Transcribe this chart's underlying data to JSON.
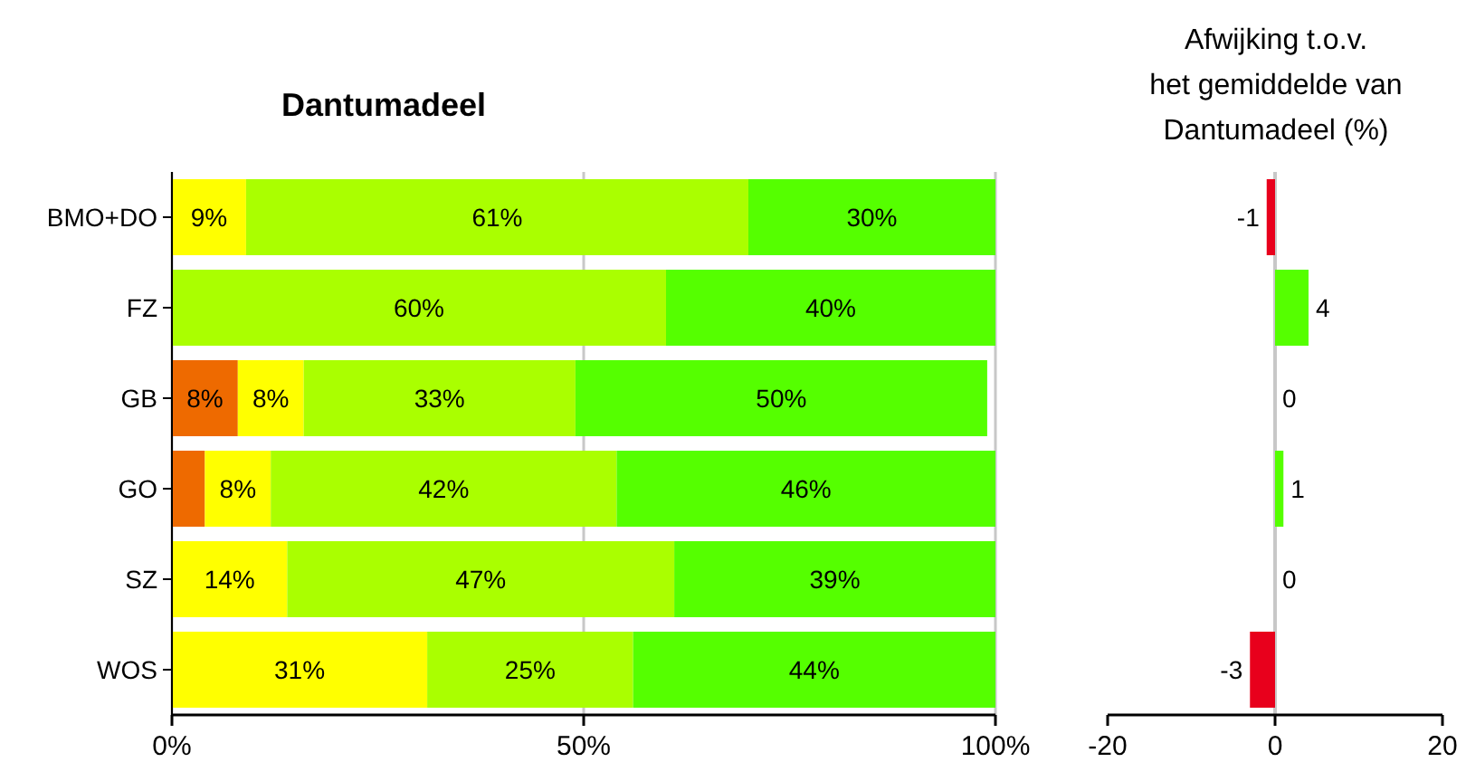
{
  "chart_data": [
    {
      "type": "bar",
      "title": "Dantumadeel",
      "orientation": "horizontal",
      "stacked": true,
      "categories": [
        "BMO+DO",
        "FZ",
        "GB",
        "GO",
        "SZ",
        "WOS"
      ],
      "xlim": [
        0,
        100
      ],
      "xticks": [
        {
          "value": 0,
          "label": "0%"
        },
        {
          "value": 50,
          "label": "50%"
        },
        {
          "value": 100,
          "label": "100%"
        }
      ],
      "grid": "x",
      "series": [
        {
          "color": "#ee6a00",
          "values": [
            0,
            0,
            8,
            4,
            0,
            0
          ],
          "value_labels": [
            null,
            null,
            "8%",
            null,
            null,
            null
          ]
        },
        {
          "color": "#ffff00",
          "values": [
            9,
            0,
            8,
            8,
            14,
            31
          ],
          "value_labels": [
            "9%",
            null,
            "8%",
            "8%",
            "14%",
            "31%"
          ]
        },
        {
          "color": "#aaff00",
          "values": [
            61,
            60,
            33,
            42,
            47,
            25
          ],
          "value_labels": [
            "61%",
            "60%",
            "33%",
            "42%",
            "47%",
            "25%"
          ]
        },
        {
          "color": "#55ff00",
          "values": [
            30,
            40,
            50,
            46,
            39,
            44
          ],
          "value_labels": [
            "30%",
            "40%",
            "50%",
            "46%",
            "39%",
            "44%"
          ]
        }
      ]
    },
    {
      "type": "bar",
      "title": "Afwijking t.o.v.\nhet gemiddelde van\nDantumadeel (%)",
      "orientation": "horizontal",
      "categories": [
        null,
        null,
        null,
        null,
        null,
        null
      ],
      "tick_labels": "x",
      "xlim": [
        -20,
        20
      ],
      "xticks": [
        -20,
        0,
        20
      ],
      "values": [
        -1,
        4,
        0,
        1,
        0,
        -3
      ],
      "colors": [
        "#e8001c",
        "#55ff00",
        "#55ff00",
        "#55ff00",
        "#55ff00",
        "#e8001c"
      ],
      "data_labels": true
    }
  ]
}
